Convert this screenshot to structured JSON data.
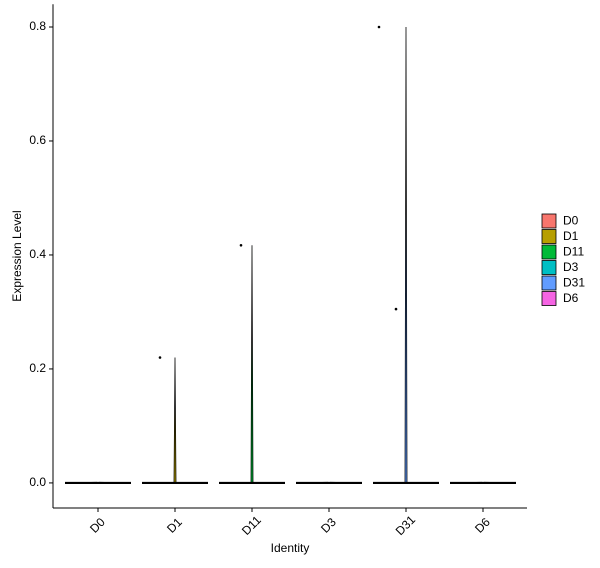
{
  "chart_data": {
    "type": "violin",
    "x_label": "Identity",
    "y_label": "Expression Level",
    "categories": [
      "D0",
      "D1",
      "D11",
      "D3",
      "D31",
      "D6"
    ],
    "colors": [
      "#F8766D",
      "#B79F00",
      "#00BA38",
      "#00BFC4",
      "#619CFF",
      "#F564E3"
    ],
    "values": [
      0,
      0.22,
      0.417,
      0,
      0.8,
      0
    ],
    "points": [
      {
        "category": "D1",
        "value": 0.22
      },
      {
        "category": "D11",
        "value": 0.417
      },
      {
        "category": "D31",
        "value": 0.8
      },
      {
        "category": "D31",
        "value": 0.305
      }
    ],
    "ylim": [
      -0.044,
      0.84
    ],
    "yticks": [
      {
        "value": 0,
        "label": "0.0"
      },
      0.2,
      0.4,
      0.6,
      0.8
    ],
    "legend": "right"
  }
}
